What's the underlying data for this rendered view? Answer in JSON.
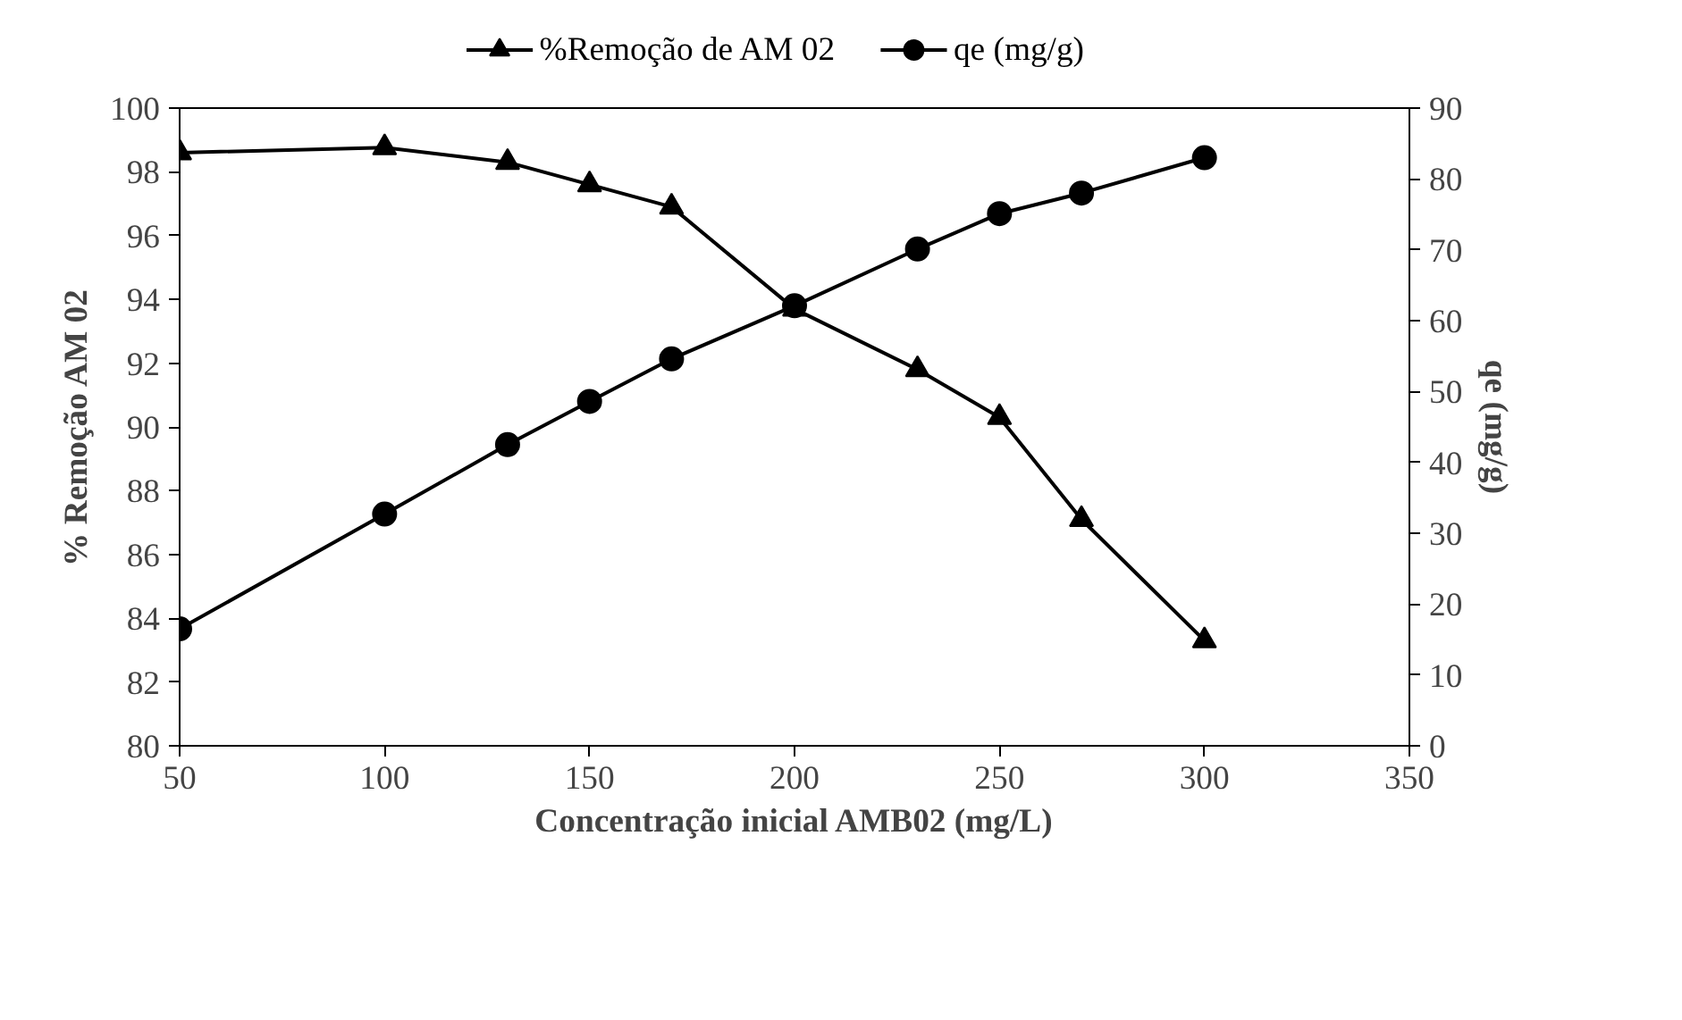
{
  "chart_data": {
    "type": "line",
    "xlabel": "Concentração inicial AMB02 (mg/L)",
    "ylabel": "% Remoção AM 02",
    "y2label": "qe (mg/g)",
    "x": [
      50,
      100,
      130,
      150,
      170,
      200,
      230,
      250,
      270,
      300
    ],
    "series": [
      {
        "name": "%Remoção de AM 02",
        "color": "#000000",
        "marker": "triangle",
        "values": [
          98.6,
          98.76,
          98.3,
          97.6,
          96.9,
          93.7,
          91.8,
          90.3,
          87.1,
          83.3
        ]
      },
      {
        "name": "qe (mg/g)",
        "color": "#000000",
        "marker": "circle",
        "axis": "y2",
        "values": [
          16.5,
          32.7,
          42.5,
          48.6,
          54.6,
          62.1,
          70.1,
          75.1,
          78.0,
          83.0
        ]
      }
    ],
    "xlim": [
      50,
      350
    ],
    "xticks": [
      50,
      100,
      150,
      200,
      250,
      300,
      350
    ],
    "ylim": [
      80,
      100
    ],
    "yticks": [
      80,
      82,
      84,
      86,
      88,
      90,
      92,
      94,
      96,
      98,
      100
    ],
    "y2lim": [
      0,
      90
    ],
    "y2ticks": [
      0,
      10,
      20,
      30,
      40,
      50,
      60,
      70,
      80,
      90
    ],
    "grid": false,
    "legend": "top",
    "line_style": "solid"
  }
}
